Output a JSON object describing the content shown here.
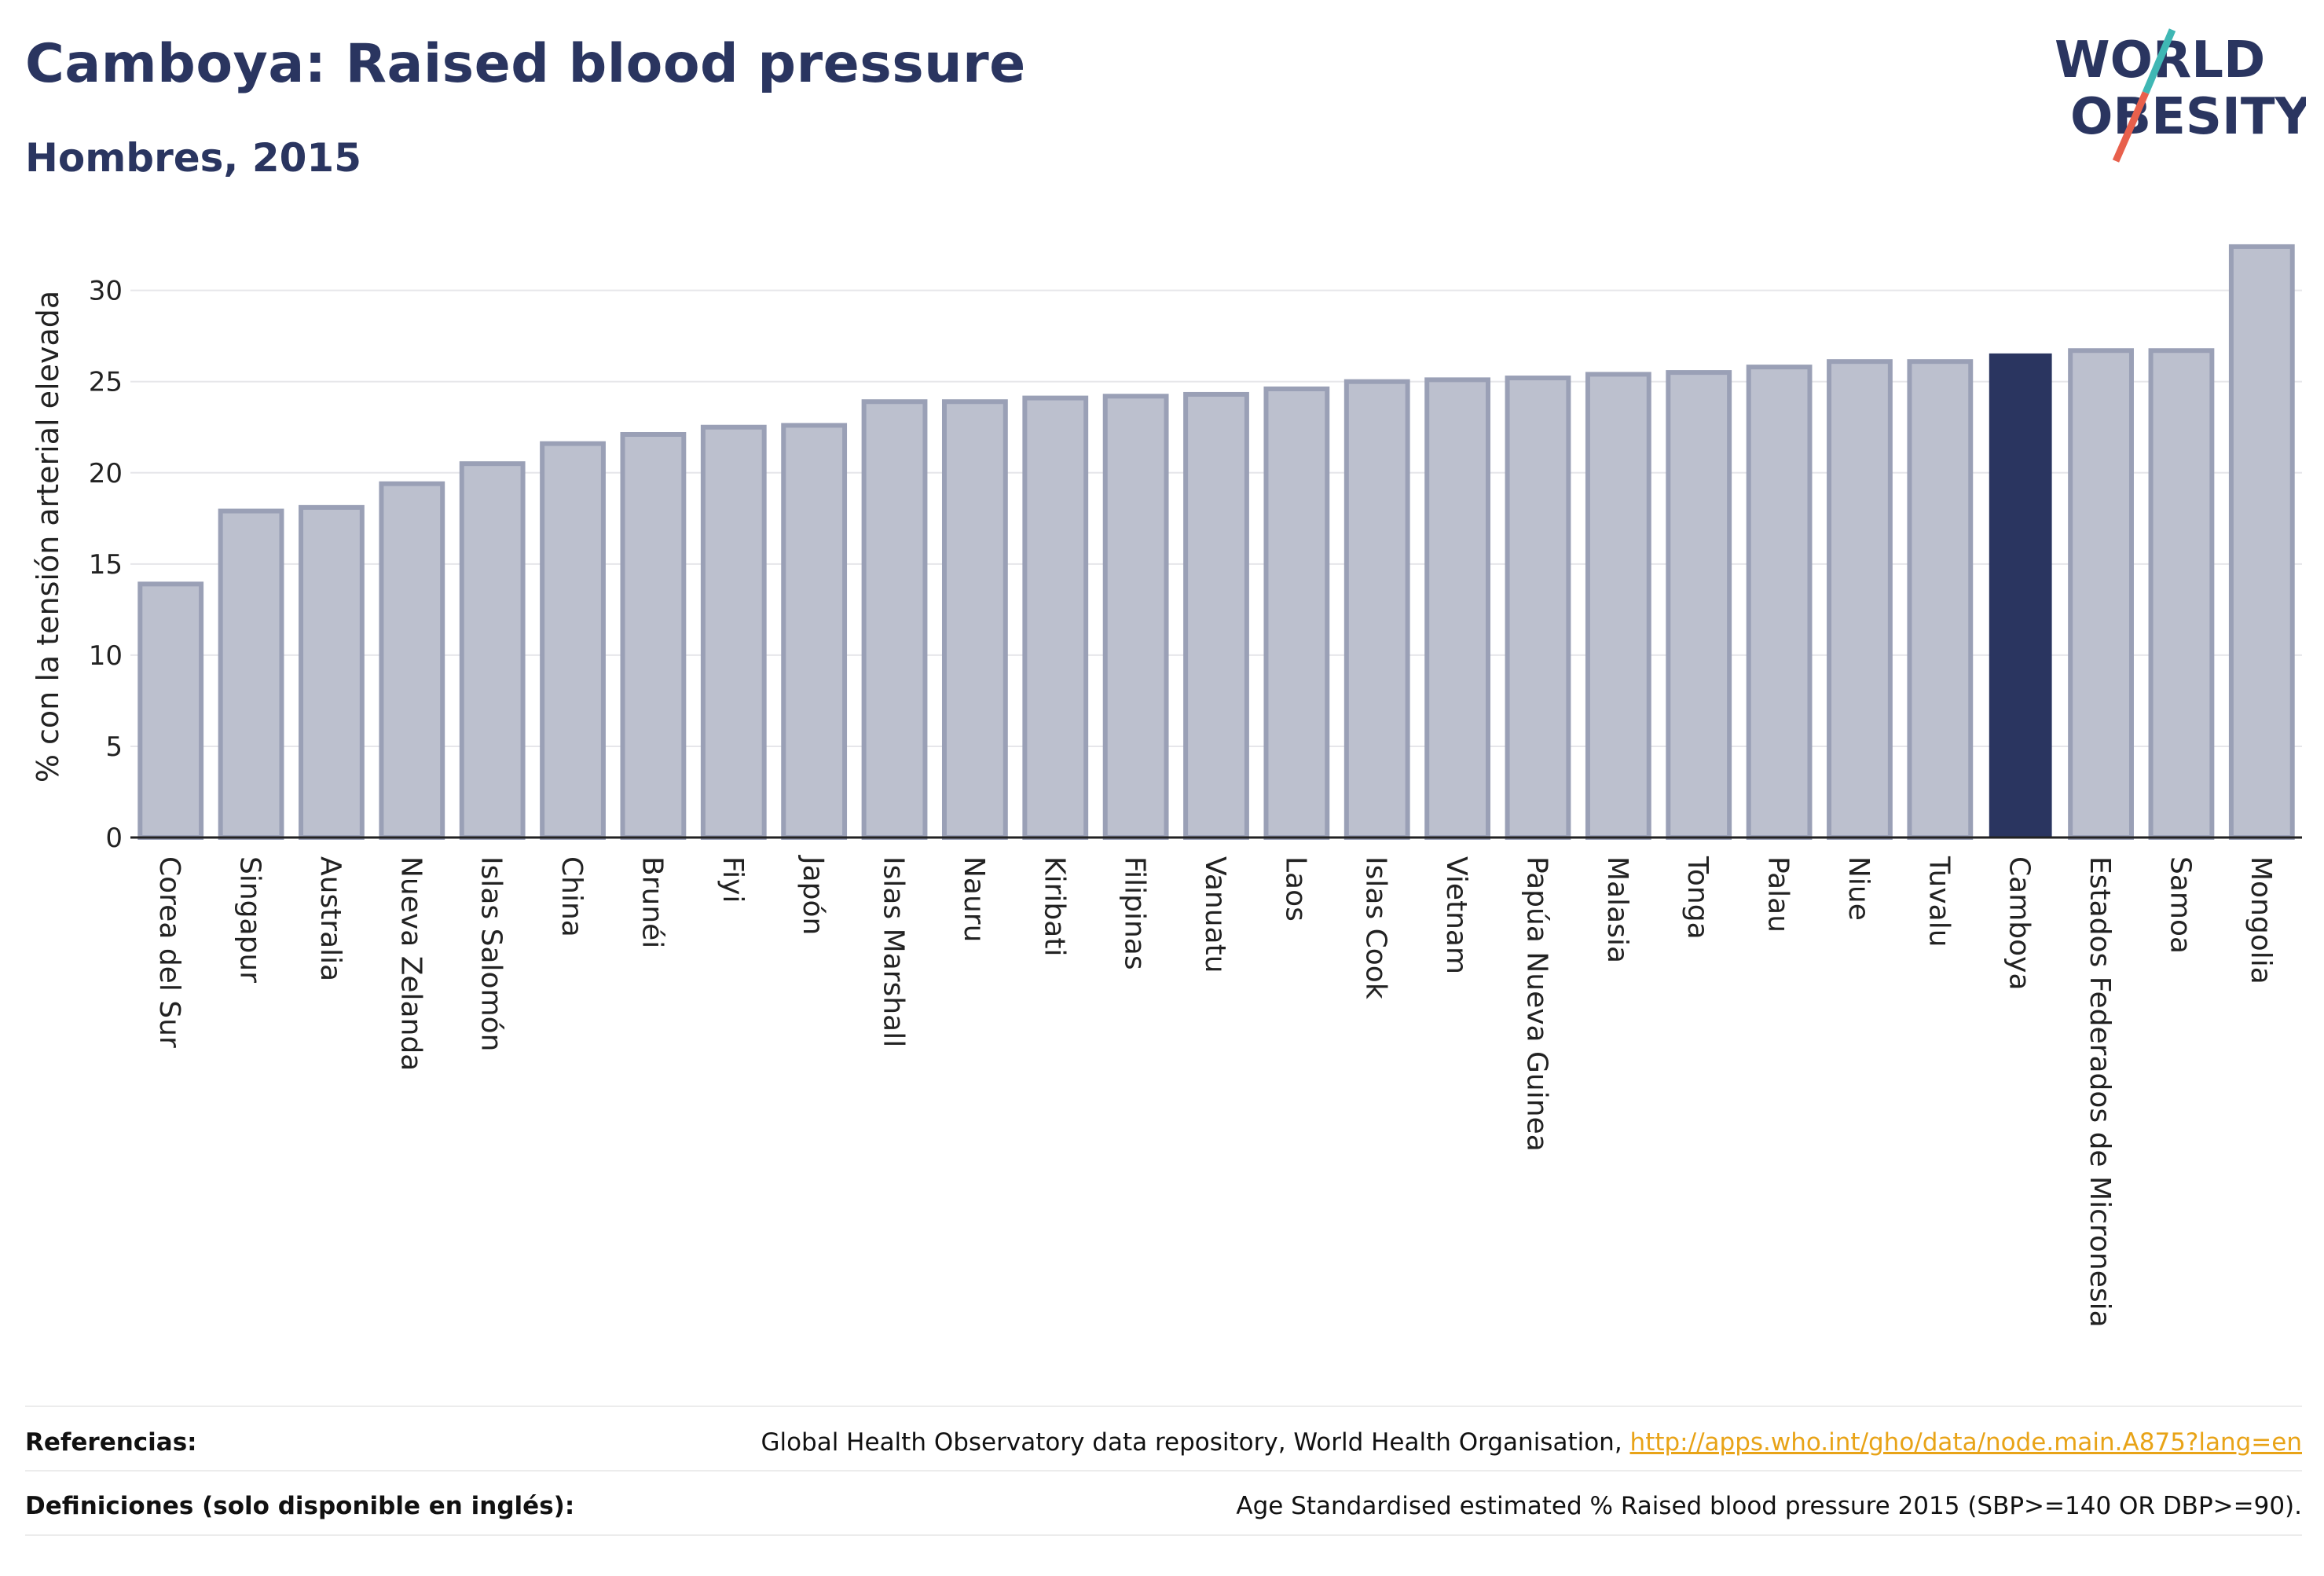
{
  "title": "Camboya: Raised blood pressure",
  "subtitle": "Hombres, 2015",
  "logo": {
    "line1": "WORLD",
    "line2": "OBESITY"
  },
  "colors": {
    "bar_fill": "#bcc0ce",
    "bar_edge": "#9aa0b6",
    "highlight": "#2a3560",
    "grid": "#e6e6ea",
    "logo_text": "#2a3560",
    "logo_teal": "#3fb7b4",
    "logo_red": "#e8604c",
    "link": "#e8a317"
  },
  "chart_data": {
    "type": "bar",
    "ylabel": "% con la tensión arterial elevada",
    "ylim": [
      0,
      33
    ],
    "yticks": [
      0,
      5,
      10,
      15,
      20,
      25,
      30
    ],
    "grid": true,
    "highlight": "Camboya",
    "categories": [
      "Corea del Sur",
      "Singapur",
      "Australia",
      "Nueva Zelanda",
      "Islas Salomón",
      "China",
      "Brunéi",
      "Fiyi",
      "Japón",
      "Islas Marshall",
      "Nauru",
      "Kiribati",
      "Filipinas",
      "Vanuatu",
      "Laos",
      "Islas Cook",
      "Vietnam",
      "Papúa Nueva Guinea",
      "Malasia",
      "Tonga",
      "Palau",
      "Niue",
      "Tuvalu",
      "Camboya",
      "Estados Federados de Micronesia",
      "Samoa",
      "Mongolia"
    ],
    "values": [
      13.9,
      17.9,
      18.1,
      19.4,
      20.5,
      21.6,
      22.1,
      22.5,
      22.6,
      23.9,
      23.9,
      24.1,
      24.2,
      24.3,
      24.6,
      25.0,
      25.1,
      25.2,
      25.4,
      25.5,
      25.8,
      26.1,
      26.1,
      26.5,
      26.7,
      26.7,
      32.4
    ]
  },
  "footer": {
    "references_label": "Referencias:",
    "references_text": "Global Health Observatory data repository, World Health Organisation,",
    "references_link": "http://apps.who.int/gho/data/node.main.A875?lang=en",
    "definitions_label": "Definiciones (solo disponible en inglés):",
    "definitions_text": "Age Standardised estimated % Raised blood pressure 2015 (SBP>=140 OR DBP>=90)."
  }
}
